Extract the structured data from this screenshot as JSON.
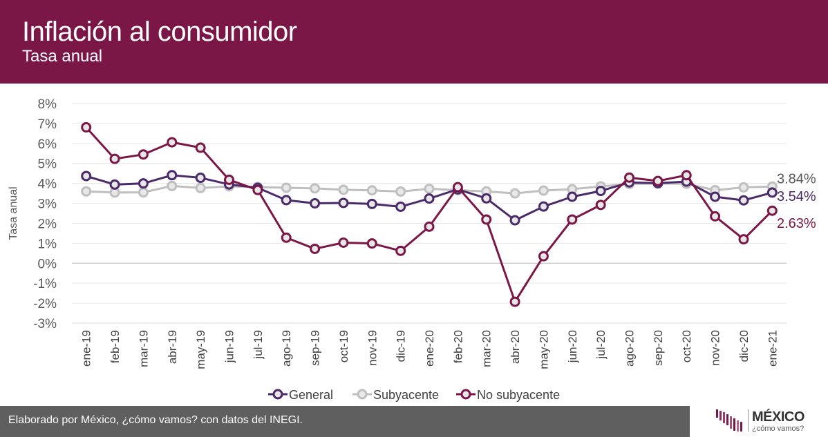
{
  "header": {
    "title": "Inflación al consumidor",
    "subtitle": "Tasa anual"
  },
  "footer": {
    "text": "Elaborado por México, ¿cómo vamos? con datos del INEGI."
  },
  "logo": {
    "name": "MÉXICO",
    "tagline": "¿cómo vamos?"
  },
  "colors": {
    "header_bg": "#7b1747",
    "general": "#4b2a6a",
    "subyacente": "#bfbfbf",
    "no_subyacente": "#7b1747",
    "footer_bg": "#5f5f5f"
  },
  "chart_data": {
    "type": "line",
    "ylabel": "Tasa anual",
    "ylim": [
      -3,
      8
    ],
    "y_ticks": [
      "8%",
      "7%",
      "6%",
      "5%",
      "4%",
      "3%",
      "2%",
      "1%",
      "0%",
      "-1%",
      "-2%",
      "-3%"
    ],
    "grid": true,
    "legend_position": "bottom",
    "categories": [
      "ene-19",
      "feb-19",
      "mar-19",
      "abr-19",
      "may-19",
      "jun-19",
      "jul-19",
      "ago-19",
      "sep-19",
      "oct-19",
      "nov-19",
      "dic-19",
      "ene-20",
      "feb-20",
      "mar-20",
      "abr-20",
      "may-20",
      "jun-20",
      "jul-20",
      "ago-20",
      "sep-20",
      "oct-20",
      "nov-20",
      "dic-20",
      "ene-21"
    ],
    "series": [
      {
        "name": "General",
        "color": "#4b2a6a",
        "values": [
          4.37,
          3.94,
          4.0,
          4.41,
          4.28,
          3.95,
          3.78,
          3.16,
          3.0,
          3.02,
          2.97,
          2.83,
          3.24,
          3.7,
          3.25,
          2.15,
          2.84,
          3.33,
          3.62,
          4.05,
          4.01,
          4.09,
          3.33,
          3.15,
          3.54
        ],
        "end_label": "3.54%"
      },
      {
        "name": "Subyacente",
        "color": "#bfbfbf",
        "values": [
          3.6,
          3.54,
          3.55,
          3.87,
          3.77,
          3.85,
          3.82,
          3.78,
          3.75,
          3.68,
          3.65,
          3.59,
          3.73,
          3.66,
          3.6,
          3.5,
          3.64,
          3.71,
          3.85,
          3.97,
          3.99,
          3.98,
          3.66,
          3.8,
          3.84
        ],
        "end_label": "3.84%"
      },
      {
        "name": "No subyacente",
        "color": "#7b1747",
        "values": [
          6.81,
          5.23,
          5.45,
          6.06,
          5.79,
          4.18,
          3.67,
          1.28,
          0.72,
          1.03,
          0.99,
          0.62,
          1.83,
          3.81,
          2.19,
          -1.93,
          0.35,
          2.19,
          2.92,
          4.29,
          4.12,
          4.41,
          2.35,
          1.2,
          2.63
        ],
        "end_label": "2.63%"
      }
    ]
  }
}
